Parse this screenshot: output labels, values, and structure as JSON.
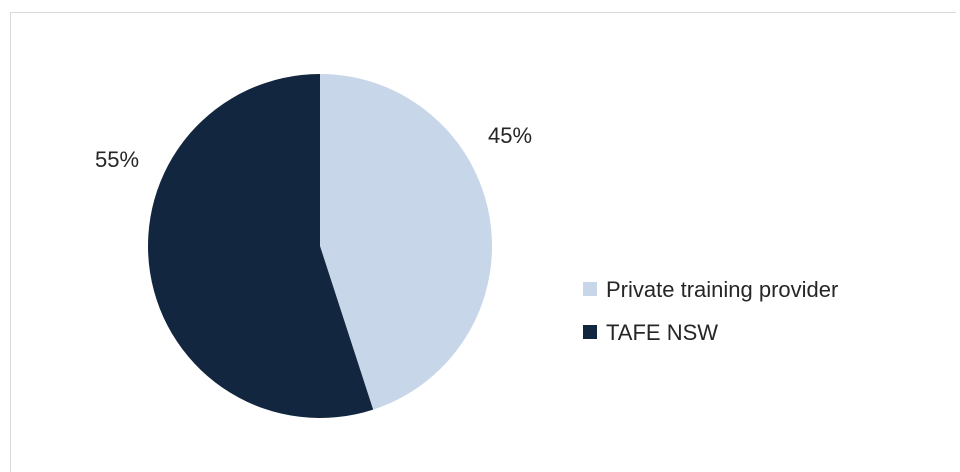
{
  "chart_data": {
    "type": "pie",
    "title": "",
    "start_angle_deg": 0,
    "direction": "clockwise",
    "legend_position": "right",
    "slices": [
      {
        "label": "Private training provider",
        "value": 45,
        "display": "45%",
        "color": "#c7d6e8"
      },
      {
        "label": "TAFE NSW",
        "value": 55,
        "display": "55%",
        "color": "#12263f"
      }
    ]
  }
}
